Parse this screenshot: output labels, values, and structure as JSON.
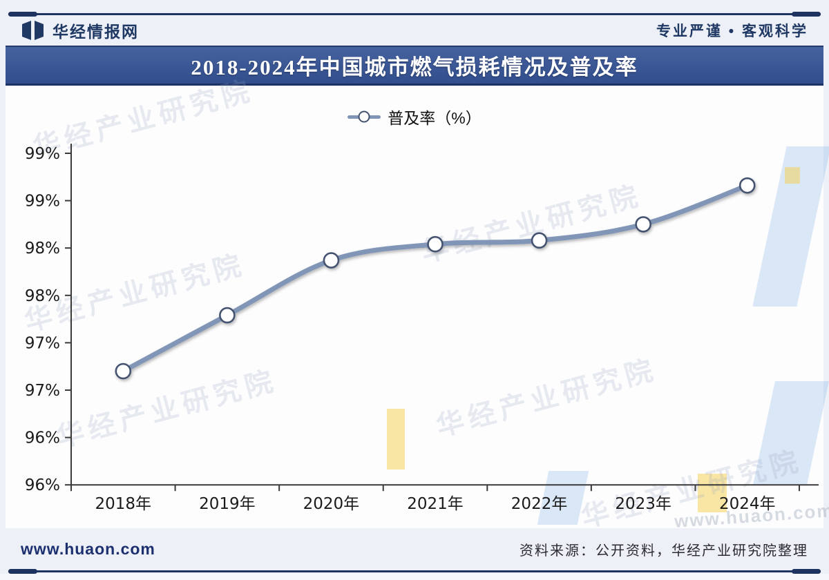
{
  "header": {
    "brand": "华经情报网",
    "slogan": "专业严谨 • 客观科学"
  },
  "title_banner": "2018-2024年中国城市燃气损耗情况及普及率",
  "legend_label": "普及率（%）",
  "chart_data": {
    "type": "line",
    "title": "2018-2024年中国城市燃气损耗情况及普及率",
    "categories": [
      "2018年",
      "2019年",
      "2020年",
      "2021年",
      "2022年",
      "2023年",
      "2024年"
    ],
    "series": [
      {
        "name": "普及率（%）",
        "values": [
          96.7,
          97.29,
          97.87,
          98.04,
          98.08,
          98.25,
          98.66
        ]
      }
    ],
    "ylim": [
      95.5,
      99.0
    ],
    "y_tick_step": 0.5,
    "y_tick_labels": [
      "99%",
      "99%",
      "98%",
      "98%",
      "97%",
      "97%",
      "96%",
      "96%"
    ],
    "grid": false,
    "legend_position": "top",
    "line_color": "#8195b7",
    "marker_stroke": "#44536f",
    "marker": "circle-open"
  },
  "watermark": {
    "text": "华经产业研究院",
    "url": "www.huaon.com"
  },
  "footer": {
    "site": "www.huaon.com",
    "source": "资料来源：公开资料，华经产业研究院整理"
  },
  "colors": {
    "banner": "#3a5694",
    "rule": "#1e3360",
    "brand_text": "#1f3864"
  }
}
